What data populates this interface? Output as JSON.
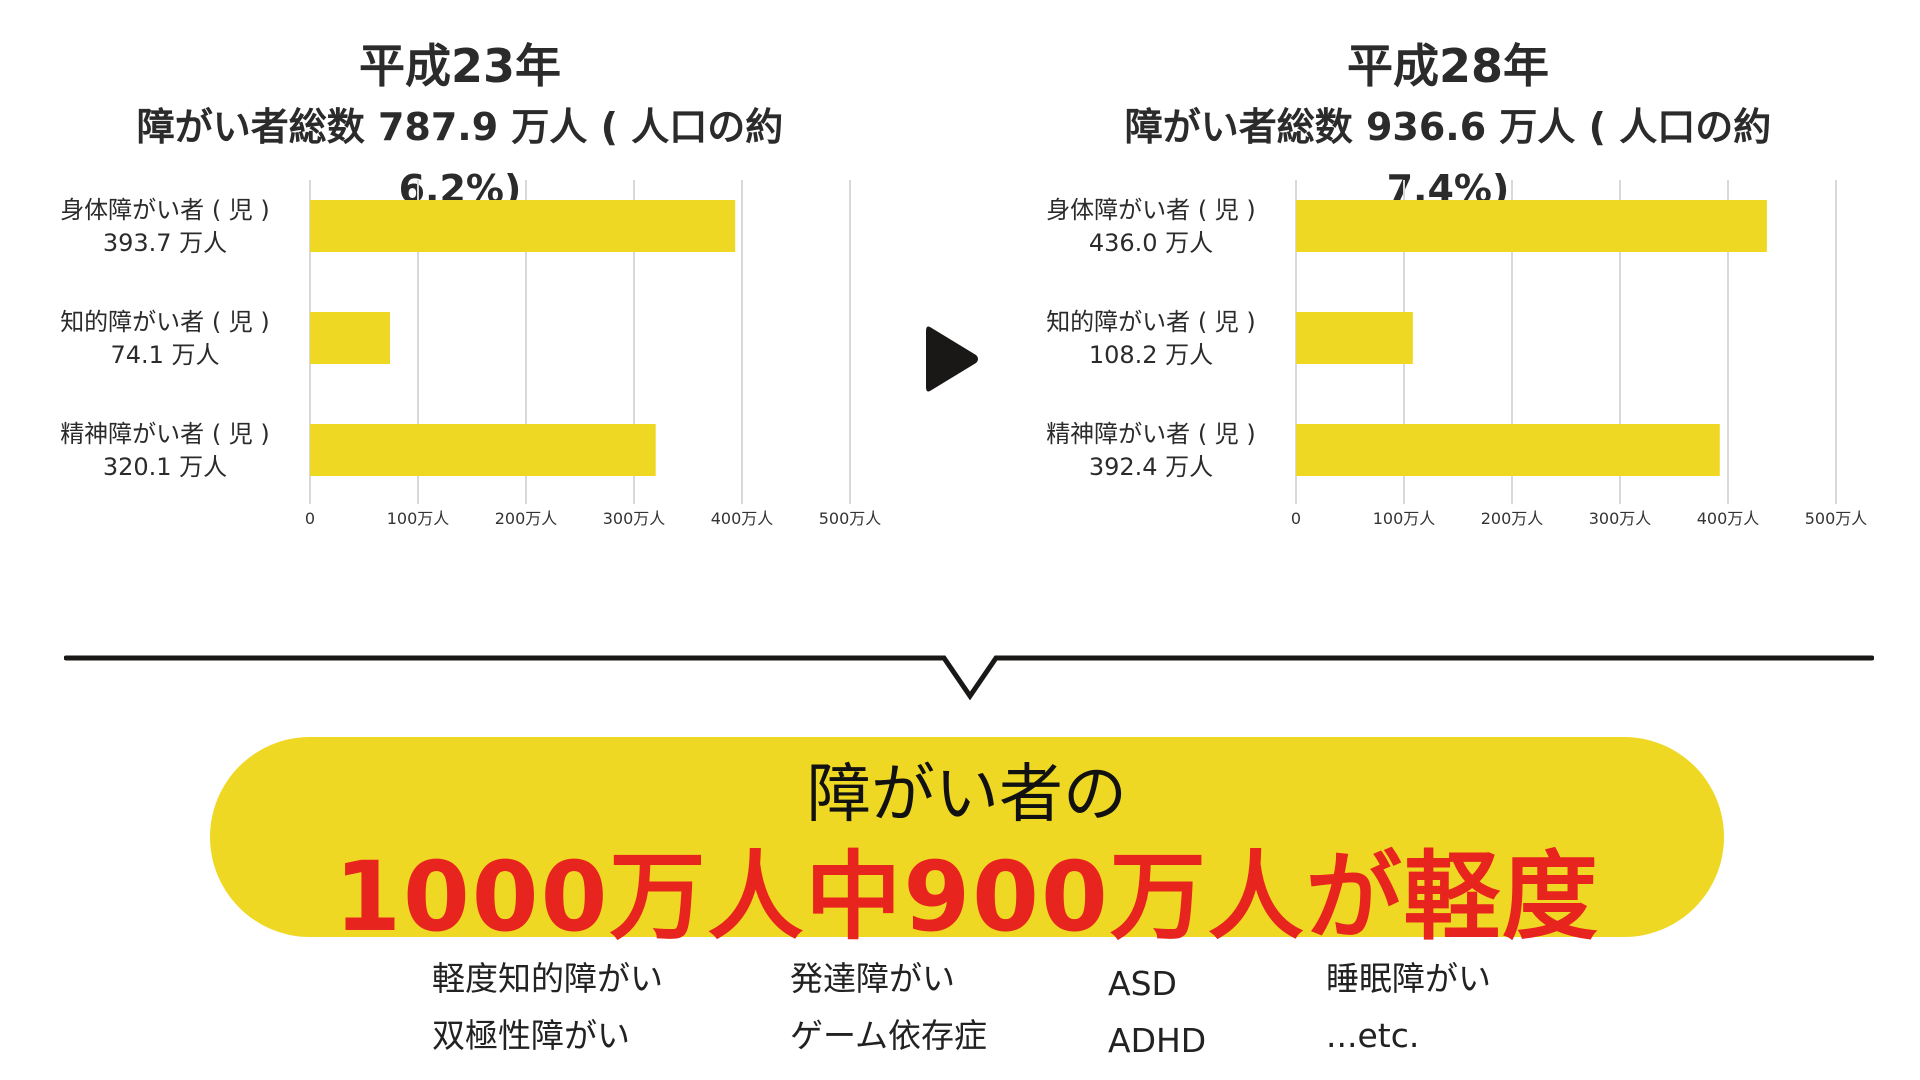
{
  "left_panel": {
    "year": "平成23年",
    "total": "障がい者総数 787.9 万人 ( 人口の約 6.2%)"
  },
  "right_panel": {
    "year": "平成28年",
    "total": "障がい者総数 936.6 万人 ( 人口の約 7.4%)"
  },
  "chart_data": [
    {
      "type": "bar",
      "orientation": "horizontal",
      "title": "平成23年",
      "subtitle": "障がい者総数 787.9 万人 ( 人口の約 6.2%)",
      "categories": [
        [
          "身体障がい者 ( 児 )",
          "393.7 万人"
        ],
        [
          "知的障がい者 ( 児 )",
          "74.1 万人"
        ],
        [
          "精神障がい者 ( 児 )",
          "320.1 万人"
        ]
      ],
      "values": [
        393.7,
        74.1,
        320.1
      ],
      "xlim": [
        0,
        500
      ],
      "x_ticks": [
        0,
        100,
        200,
        300,
        400,
        500
      ],
      "x_tick_labels": [
        "0",
        "100万人",
        "200万人",
        "300万人",
        "400万人",
        "500万人"
      ],
      "grid": true,
      "bar_color": "#efd823",
      "grid_color": "#d9d9d9"
    },
    {
      "type": "bar",
      "orientation": "horizontal",
      "title": "平成28年",
      "subtitle": "障がい者総数 936.6 万人 ( 人口の約 7.4%)",
      "categories": [
        [
          "身体障がい者 ( 児 )",
          "436.0 万人"
        ],
        [
          "知的障がい者 ( 児 )",
          "108.2 万人"
        ],
        [
          "精神障がい者 ( 児 )",
          "392.4 万人"
        ]
      ],
      "values": [
        436.0,
        108.2,
        392.4
      ],
      "xlim": [
        0,
        500
      ],
      "x_ticks": [
        0,
        100,
        200,
        300,
        400,
        500
      ],
      "x_tick_labels": [
        "0",
        "100万人",
        "200万人",
        "300万人",
        "400万人",
        "500万人"
      ],
      "grid": true,
      "bar_color": "#efd823",
      "grid_color": "#d9d9d9"
    }
  ],
  "summary": {
    "line1": "障がい者の",
    "line2": "1000万人中900万人が軽度",
    "highlight_color": "#efd823",
    "emphasis_color": "#e8241e"
  },
  "examples": {
    "col1": [
      "軽度知的障がい",
      "双極性障がい"
    ],
    "col2": [
      "発達障がい",
      "ゲーム依存症"
    ],
    "col3": [
      "ASD",
      "ADHD"
    ],
    "col4": [
      "睡眠障がい",
      "...etc."
    ]
  },
  "icons": {
    "arrow": "play-triangle-icon"
  }
}
